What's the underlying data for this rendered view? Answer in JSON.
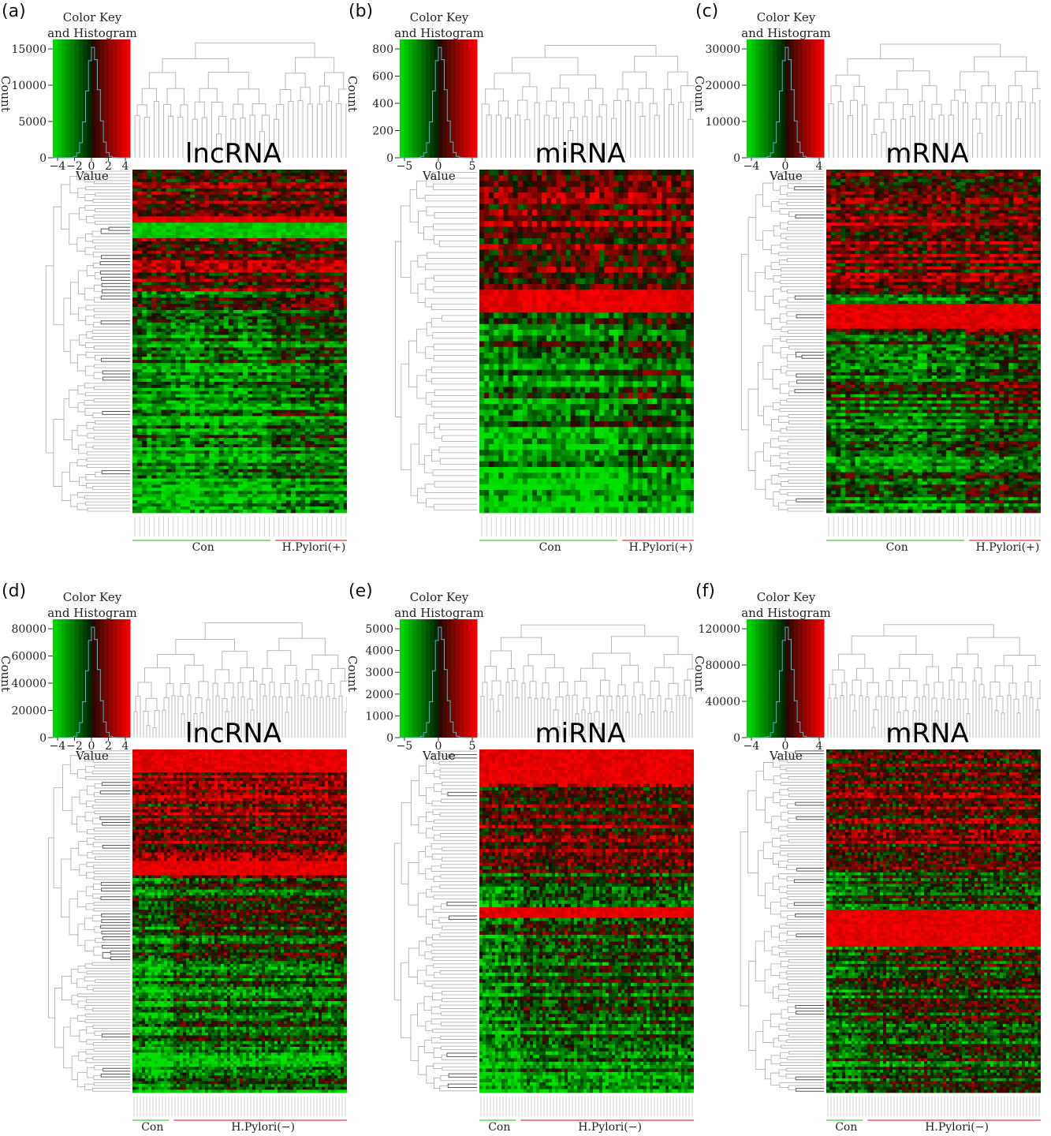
{
  "figure": {
    "panels": [
      {
        "letter": "(a)",
        "title": "lncRNA",
        "key_title_1": "Color Key",
        "key_title_2": "and Histogram",
        "count_label": "Count",
        "value_label": "Value",
        "yticks": [
          "15000",
          "10000",
          "5000",
          "0"
        ],
        "xticks": [
          "−4",
          "−2",
          "0",
          "2",
          "4"
        ],
        "group_labels": [
          "Con",
          "H.Pylori(+)"
        ],
        "con_fraction": 0.64,
        "rows": 110,
        "cols": 46,
        "seed": 11,
        "bands": [
          [
            0.13,
            0.16,
            "red"
          ],
          [
            0.15,
            0.2,
            "green"
          ]
        ],
        "green_bias": 0.55
      },
      {
        "letter": "(b)",
        "title": "miRNA",
        "key_title_1": "Color Key",
        "key_title_2": "and Histogram",
        "count_label": "Count",
        "value_label": "Value",
        "yticks": [
          "800",
          "600",
          "400",
          "200",
          "0"
        ],
        "xticks": [
          "−5",
          "0",
          "5"
        ],
        "group_labels": [
          "Con",
          "H.Pylori(+)"
        ],
        "con_fraction": 0.64,
        "rows": 60,
        "cols": 46,
        "seed": 23,
        "bands": [
          [
            0.34,
            0.41,
            "red"
          ]
        ],
        "green_bias": 0.55
      },
      {
        "letter": "(c)",
        "title": "mRNA",
        "key_title_1": "Color Key",
        "key_title_2": "and Histogram",
        "count_label": "Count",
        "value_label": "Value",
        "yticks": [
          "30000",
          "20000",
          "10000",
          "0"
        ],
        "xticks": [
          "−4",
          "0",
          "4"
        ],
        "group_labels": [
          "Con",
          "H.Pylori(+)"
        ],
        "con_fraction": 0.64,
        "rows": 110,
        "cols": 46,
        "seed": 37,
        "bands": [
          [
            0.39,
            0.46,
            "red"
          ]
        ],
        "green_bias": 0.2
      },
      {
        "letter": "(d)",
        "title": "lncRNA",
        "key_title_1": "Color Key",
        "key_title_2": "and Histogram",
        "count_label": "Count",
        "value_label": "Value",
        "yticks": [
          "80000",
          "60000",
          "40000",
          "20000",
          "0"
        ],
        "xticks": [
          "−4",
          "−2",
          "0",
          "2",
          "4"
        ],
        "group_labels": [
          "Con",
          "H.Pylori(−)"
        ],
        "con_fraction": 0.18,
        "rows": 120,
        "cols": 70,
        "seed": 41,
        "bands": [
          [
            0.0,
            0.06,
            "red"
          ],
          [
            0.32,
            0.36,
            "red"
          ]
        ],
        "green_bias": 0.5
      },
      {
        "letter": "(e)",
        "title": "miRNA",
        "key_title_1": "Color Key",
        "key_title_2": "and Histogram",
        "count_label": "Count",
        "value_label": "Value",
        "yticks": [
          "5000",
          "4000",
          "3000",
          "2000",
          "1000",
          "0"
        ],
        "xticks": [
          "−5",
          "0",
          "5"
        ],
        "group_labels": [
          "Con",
          "H.Pylori(−)"
        ],
        "con_fraction": 0.18,
        "rows": 100,
        "cols": 70,
        "seed": 53,
        "bands": [
          [
            0.0,
            0.1,
            "red"
          ],
          [
            0.46,
            0.49,
            "red"
          ]
        ],
        "green_bias": 0.5
      },
      {
        "letter": "(f)",
        "title": "mRNA",
        "key_title_1": "Color Key",
        "key_title_2": "and Histogram",
        "count_label": "Count",
        "value_label": "Value",
        "yticks": [
          "120000",
          "80000",
          "40000",
          "0"
        ],
        "xticks": [
          "−4",
          "0",
          "4"
        ],
        "group_labels": [
          "Con",
          "H.Pylori(−)"
        ],
        "con_fraction": 0.18,
        "rows": 120,
        "cols": 70,
        "seed": 67,
        "bands": [
          [
            0.46,
            0.57,
            "red"
          ]
        ],
        "green_bias": 0.25
      }
    ]
  },
  "chart_data": [
    {
      "type": "heatmap",
      "title": "lncRNA",
      "ylabel": "Count",
      "xlabel": "Value",
      "histogram_y_range": [
        0,
        15000
      ],
      "value_range": [
        -4,
        4
      ],
      "groups": [
        "Con",
        "H.Pylori(+)"
      ],
      "colors": {
        "low": "#00ff00",
        "mid": "#000000",
        "high": "#ff0000"
      }
    },
    {
      "type": "heatmap",
      "title": "miRNA",
      "ylabel": "Count",
      "xlabel": "Value",
      "histogram_y_range": [
        0,
        800
      ],
      "value_range": [
        -5,
        5
      ],
      "groups": [
        "Con",
        "H.Pylori(+)"
      ],
      "colors": {
        "low": "#00ff00",
        "mid": "#000000",
        "high": "#ff0000"
      }
    },
    {
      "type": "heatmap",
      "title": "mRNA",
      "ylabel": "Count",
      "xlabel": "Value",
      "histogram_y_range": [
        0,
        30000
      ],
      "value_range": [
        -4,
        4
      ],
      "groups": [
        "Con",
        "H.Pylori(+)"
      ],
      "colors": {
        "low": "#00ff00",
        "mid": "#000000",
        "high": "#ff0000"
      }
    },
    {
      "type": "heatmap",
      "title": "lncRNA",
      "ylabel": "Count",
      "xlabel": "Value",
      "histogram_y_range": [
        0,
        80000
      ],
      "value_range": [
        -4,
        4
      ],
      "groups": [
        "Con",
        "H.Pylori(−)"
      ],
      "colors": {
        "low": "#00ff00",
        "mid": "#000000",
        "high": "#ff0000"
      }
    },
    {
      "type": "heatmap",
      "title": "miRNA",
      "ylabel": "Count",
      "xlabel": "Value",
      "histogram_y_range": [
        0,
        5000
      ],
      "value_range": [
        -5,
        5
      ],
      "groups": [
        "Con",
        "H.Pylori(−)"
      ],
      "colors": {
        "low": "#00ff00",
        "mid": "#000000",
        "high": "#ff0000"
      }
    },
    {
      "type": "heatmap",
      "title": "mRNA",
      "ylabel": "Count",
      "xlabel": "Value",
      "histogram_y_range": [
        0,
        120000
      ],
      "value_range": [
        -4,
        4
      ],
      "groups": [
        "Con",
        "H.Pylori(−)"
      ],
      "colors": {
        "low": "#00ff00",
        "mid": "#000000",
        "high": "#ff0000"
      }
    }
  ]
}
